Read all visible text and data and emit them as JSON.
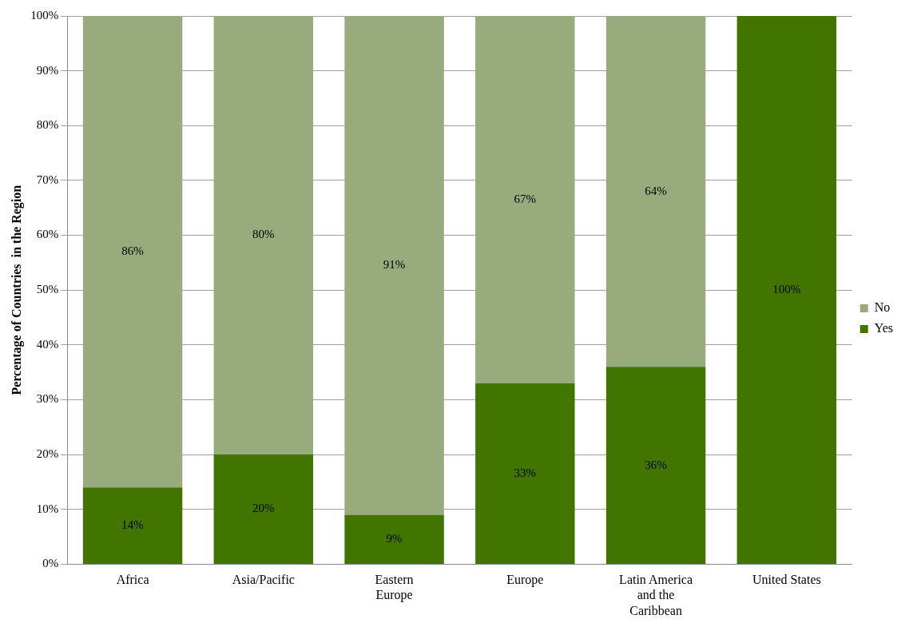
{
  "chart_data": {
    "type": "bar",
    "stacked": true,
    "ylabel": "Percentage of Countries  in the Region",
    "categories": [
      "Africa",
      "Asia/Pacific",
      "Eastern Europe",
      "Europe",
      "Latin America and the Caribbean",
      "United States"
    ],
    "series": [
      {
        "name": "Yes",
        "color": "#427500",
        "values": [
          14,
          20,
          9,
          33,
          36,
          100
        ],
        "value_labels": [
          "14%",
          "20%",
          "9%",
          "33%",
          "36%",
          "100%"
        ]
      },
      {
        "name": "No",
        "color": "#97ab7c",
        "values": [
          86,
          80,
          91,
          67,
          64,
          0
        ],
        "value_labels": [
          "86%",
          "80%",
          "91%",
          "67%",
          "64%",
          null
        ]
      }
    ],
    "ylim": [
      0,
      100
    ],
    "yticks": [
      {
        "value": 0,
        "label": "0%"
      },
      {
        "value": 10,
        "label": "10%"
      },
      {
        "value": 20,
        "label": "20%"
      },
      {
        "value": 30,
        "label": "30%"
      },
      {
        "value": 40,
        "label": "40%"
      },
      {
        "value": 50,
        "label": "50%"
      },
      {
        "value": 60,
        "label": "60%"
      },
      {
        "value": 70,
        "label": "70%"
      },
      {
        "value": 80,
        "label": "80%"
      },
      {
        "value": 90,
        "label": "90%"
      },
      {
        "value": 100,
        "label": "100%"
      }
    ],
    "grid": "y",
    "legend": "right"
  }
}
